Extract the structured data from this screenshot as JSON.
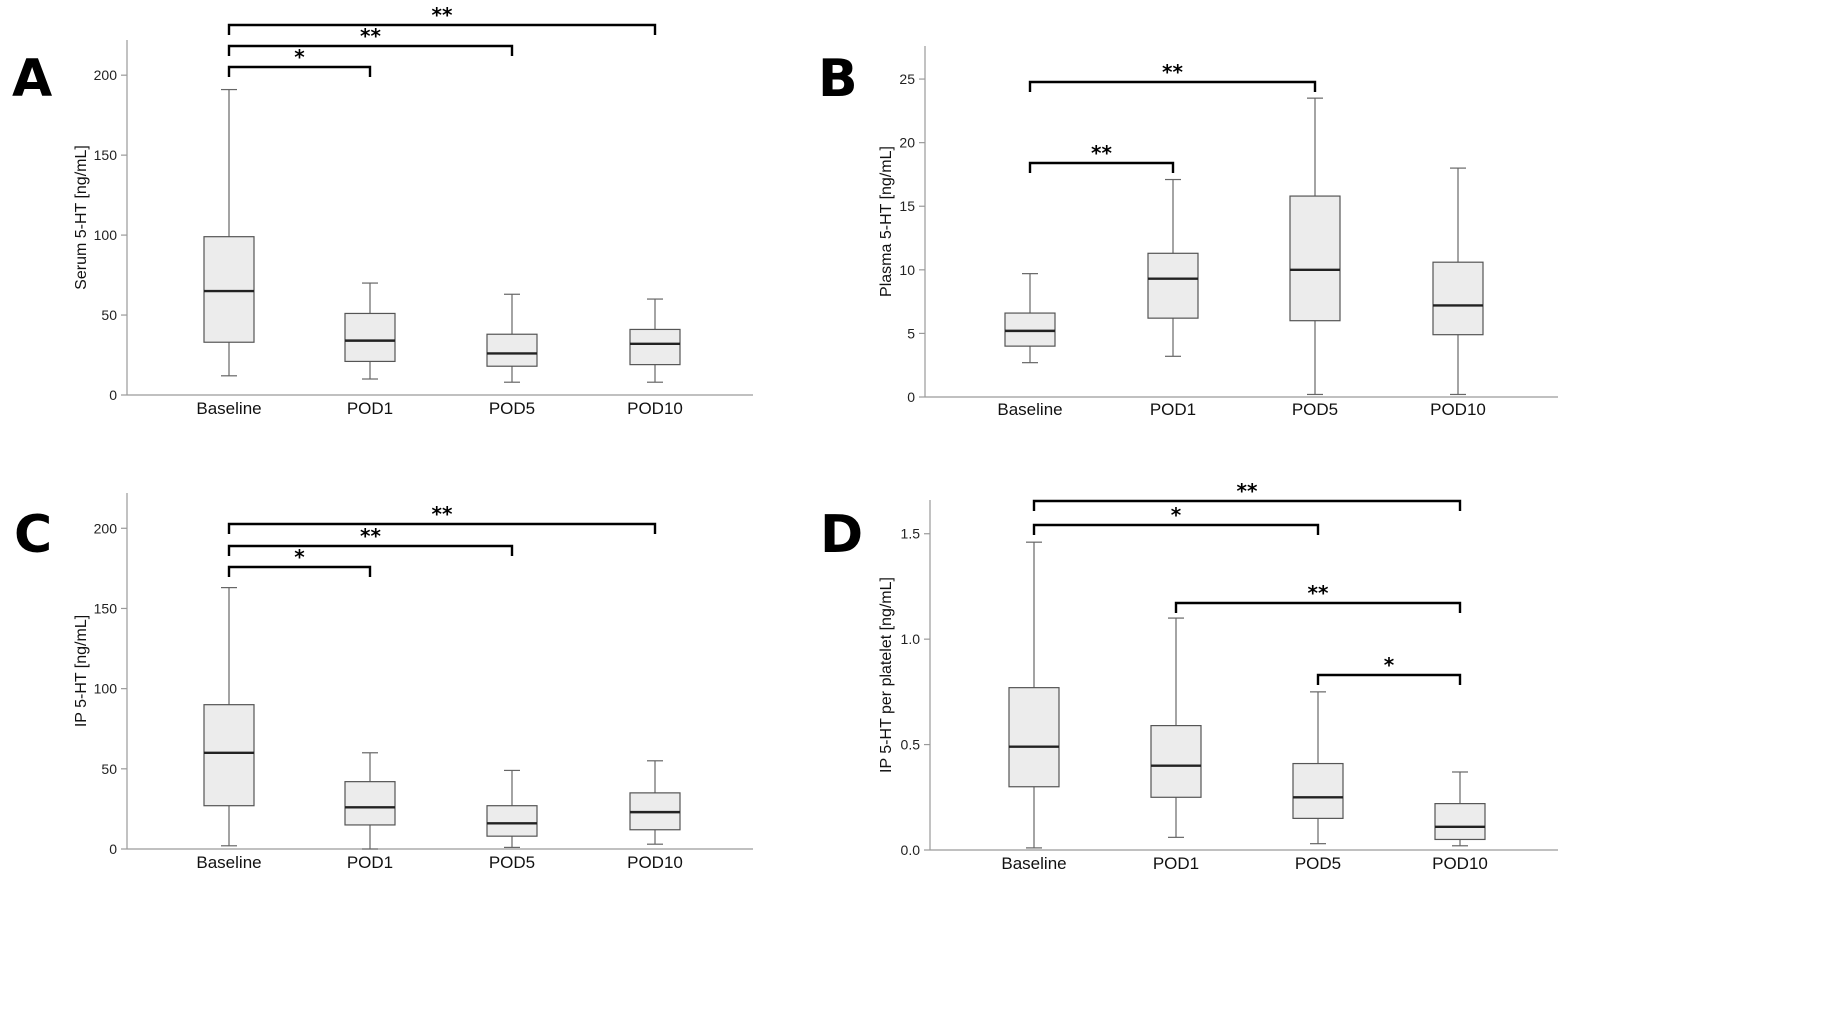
{
  "chart_data": [
    {
      "panel": "A",
      "type": "box",
      "title": "",
      "xlabel": "",
      "ylabel": "Serum 5-HT [ng/mL]",
      "categories": [
        "Baseline",
        "POD1",
        "POD5",
        "POD10"
      ],
      "ylim": [
        0,
        222
      ],
      "yticks": [
        0,
        50,
        100,
        150,
        200
      ],
      "tick_labels": [
        "0",
        "50",
        "100",
        "150",
        "200"
      ],
      "boxes": [
        {
          "min": 12,
          "q1": 33,
          "median": 65,
          "q3": 99,
          "max": 191
        },
        {
          "min": 10,
          "q1": 21,
          "median": 34,
          "q3": 51,
          "max": 70
        },
        {
          "min": 8,
          "q1": 18,
          "median": 26,
          "q3": 38,
          "max": 63
        },
        {
          "min": 8,
          "q1": 19,
          "median": 32,
          "q3": 41,
          "max": 60
        }
      ],
      "significance": [
        {
          "from": 0,
          "to": 1,
          "label": "*"
        },
        {
          "from": 0,
          "to": 2,
          "label": "**"
        },
        {
          "from": 0,
          "to": 3,
          "label": "**"
        }
      ]
    },
    {
      "panel": "B",
      "type": "box",
      "title": "",
      "xlabel": "",
      "ylabel": "Plasma 5-HT [ng/mL]",
      "categories": [
        "Baseline",
        "POD1",
        "POD5",
        "POD10"
      ],
      "ylim": [
        0,
        27.6
      ],
      "yticks": [
        0,
        5,
        10,
        15,
        20,
        25
      ],
      "tick_labels": [
        "0",
        "5",
        "10",
        "15",
        "20",
        "25"
      ],
      "boxes": [
        {
          "min": 2.7,
          "q1": 4,
          "median": 5.2,
          "q3": 6.6,
          "max": 9.7
        },
        {
          "min": 3.2,
          "q1": 6.2,
          "median": 9.3,
          "q3": 11.3,
          "max": 17.1
        },
        {
          "min": 0.2,
          "q1": 6,
          "median": 10,
          "q3": 15.8,
          "max": 23.5
        },
        {
          "min": 0.2,
          "q1": 4.9,
          "median": 7.2,
          "q3": 10.6,
          "max": 18
        }
      ],
      "significance": [
        {
          "from": 0,
          "to": 1,
          "label": "**"
        },
        {
          "from": 0,
          "to": 2,
          "label": "**"
        }
      ]
    },
    {
      "panel": "C",
      "type": "box",
      "title": "",
      "xlabel": "",
      "ylabel": "IP 5-HT [ng/mL]",
      "categories": [
        "Baseline",
        "POD1",
        "POD5",
        "POD10"
      ],
      "ylim": [
        0,
        222
      ],
      "yticks": [
        0,
        50,
        100,
        150,
        200
      ],
      "tick_labels": [
        "0",
        "50",
        "100",
        "150",
        "200"
      ],
      "boxes": [
        {
          "min": 2,
          "q1": 27,
          "median": 60,
          "q3": 90,
          "max": 163
        },
        {
          "min": 0,
          "q1": 15,
          "median": 26,
          "q3": 42,
          "max": 60
        },
        {
          "min": 1,
          "q1": 8,
          "median": 16,
          "q3": 27,
          "max": 49
        },
        {
          "min": 3,
          "q1": 12,
          "median": 23,
          "q3": 35,
          "max": 55
        }
      ],
      "significance": [
        {
          "from": 0,
          "to": 1,
          "label": "*"
        },
        {
          "from": 0,
          "to": 2,
          "label": "**"
        },
        {
          "from": 0,
          "to": 3,
          "label": "**"
        }
      ]
    },
    {
      "panel": "D",
      "type": "box",
      "title": "",
      "xlabel": "",
      "ylabel": "IP 5-HT per platelet [ng/mL]",
      "categories": [
        "Baseline",
        "POD1",
        "POD5",
        "POD10"
      ],
      "ylim": [
        0,
        1.66
      ],
      "yticks": [
        0,
        0.5,
        1.0,
        1.5
      ],
      "tick_labels": [
        "0.0",
        "0.5",
        "1.0",
        "1.5"
      ],
      "boxes": [
        {
          "min": 0.01,
          "q1": 0.3,
          "median": 0.49,
          "q3": 0.77,
          "max": 1.46
        },
        {
          "min": 0.06,
          "q1": 0.25,
          "median": 0.4,
          "q3": 0.59,
          "max": 1.1
        },
        {
          "min": 0.03,
          "q1": 0.15,
          "median": 0.25,
          "q3": 0.41,
          "max": 0.75
        },
        {
          "min": 0.02,
          "q1": 0.05,
          "median": 0.11,
          "q3": 0.22,
          "max": 0.37
        }
      ],
      "significance": [
        {
          "from": 0,
          "to": 2,
          "label": "*"
        },
        {
          "from": 0,
          "to": 3,
          "label": "**"
        },
        {
          "from": 1,
          "to": 3,
          "label": "**"
        },
        {
          "from": 2,
          "to": 3,
          "label": "*"
        }
      ]
    }
  ]
}
